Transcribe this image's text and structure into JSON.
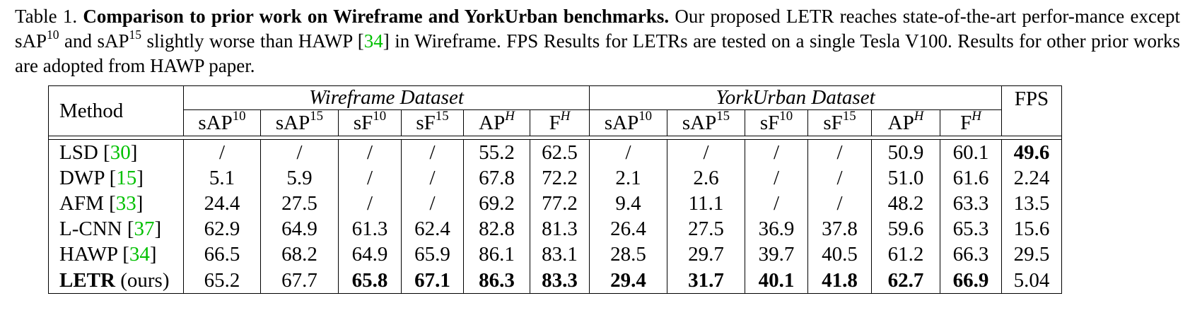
{
  "caption": {
    "label": "Table 1.",
    "title": "Comparison to prior work on Wireframe and YorkUrban benchmarks.",
    "text1": "Our proposed LETR reaches state-of-the-art perfor-mance except sAP",
    "sup1": "10",
    "text2": "and sAP",
    "sup2": "15",
    "text3": "slightly worse than HAWP [",
    "ref": "34",
    "text4": "] in Wireframe. FPS Results for LETRs are tested on a single Tesla V100. Results for other prior works are adopted from HAWP paper."
  },
  "table": {
    "method_header": "Method",
    "fps_header": "FPS",
    "datasets": [
      "Wireframe Dataset",
      "YorkUrban Dataset"
    ],
    "metrics": [
      {
        "base": "sAP",
        "sup": "10"
      },
      {
        "base": "sAP",
        "sup": "15"
      },
      {
        "base": "sF",
        "sup": "10"
      },
      {
        "base": "sF",
        "sup": "15"
      },
      {
        "base": "AP",
        "sup": "H"
      },
      {
        "base": "F",
        "sup": "H"
      }
    ],
    "rows": [
      {
        "method": "LSD",
        "ref": "30",
        "suffix": "",
        "values": [
          "/",
          "/",
          "/",
          "/",
          "55.2",
          "62.5",
          "/",
          "/",
          "/",
          "/",
          "50.9",
          "60.1",
          "49.6"
        ],
        "bold": [
          12
        ]
      },
      {
        "method": "DWP",
        "ref": "15",
        "suffix": "",
        "values": [
          "5.1",
          "5.9",
          "/",
          "/",
          "67.8",
          "72.2",
          "2.1",
          "2.6",
          "/",
          "/",
          "51.0",
          "61.6",
          "2.24"
        ],
        "bold": []
      },
      {
        "method": "AFM",
        "ref": "33",
        "suffix": "",
        "values": [
          "24.4",
          "27.5",
          "/",
          "/",
          "69.2",
          "77.2",
          "9.4",
          "11.1",
          "/",
          "/",
          "48.2",
          "63.3",
          "13.5"
        ],
        "bold": []
      },
      {
        "method": "L-CNN",
        "ref": "37",
        "suffix": "",
        "values": [
          "62.9",
          "64.9",
          "61.3",
          "62.4",
          "82.8",
          "81.3",
          "26.4",
          "27.5",
          "36.9",
          "37.8",
          "59.6",
          "65.3",
          "15.6"
        ],
        "bold": []
      },
      {
        "method": "HAWP",
        "ref": "34",
        "suffix": "",
        "values": [
          "66.5",
          "68.2",
          "64.9",
          "65.9",
          "86.1",
          "83.1",
          "28.5",
          "29.7",
          "39.7",
          "40.5",
          "61.2",
          "66.3",
          "29.5"
        ],
        "bold": []
      },
      {
        "method": "LETR",
        "ref": "",
        "suffix": " (ours)",
        "values": [
          "65.2",
          "67.7",
          "65.8",
          "67.1",
          "86.3",
          "83.3",
          "29.4",
          "31.7",
          "40.1",
          "41.8",
          "62.7",
          "66.9",
          "5.04"
        ],
        "bold": [
          2,
          3,
          4,
          5,
          6,
          7,
          8,
          9,
          10,
          11
        ],
        "method_bold": true
      }
    ]
  }
}
